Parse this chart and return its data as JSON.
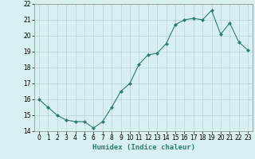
{
  "x": [
    0,
    1,
    2,
    3,
    4,
    5,
    6,
    7,
    8,
    9,
    10,
    11,
    12,
    13,
    14,
    15,
    16,
    17,
    18,
    19,
    20,
    21,
    22,
    23
  ],
  "y": [
    16.0,
    15.5,
    15.0,
    14.7,
    14.6,
    14.6,
    14.2,
    14.6,
    15.5,
    16.5,
    17.0,
    18.2,
    18.8,
    18.9,
    19.5,
    20.7,
    21.0,
    21.1,
    21.0,
    21.6,
    20.1,
    20.8,
    19.6,
    19.1
  ],
  "line_color": "#2e7d6e",
  "marker": "D",
  "marker_size": 2,
  "bg_color": "#d8f0f0",
  "grid_color": "#b8d4d4",
  "xlabel": "Humidex (Indice chaleur)",
  "xlim": [
    -0.5,
    23.5
  ],
  "ylim": [
    14.0,
    22.0
  ],
  "yticks": [
    14,
    15,
    16,
    17,
    18,
    19,
    20,
    21,
    22
  ],
  "xticks": [
    0,
    1,
    2,
    3,
    4,
    5,
    6,
    7,
    8,
    9,
    10,
    11,
    12,
    13,
    14,
    15,
    16,
    17,
    18,
    19,
    20,
    21,
    22,
    23
  ],
  "label_fontsize": 6.5,
  "tick_fontsize": 5.5
}
